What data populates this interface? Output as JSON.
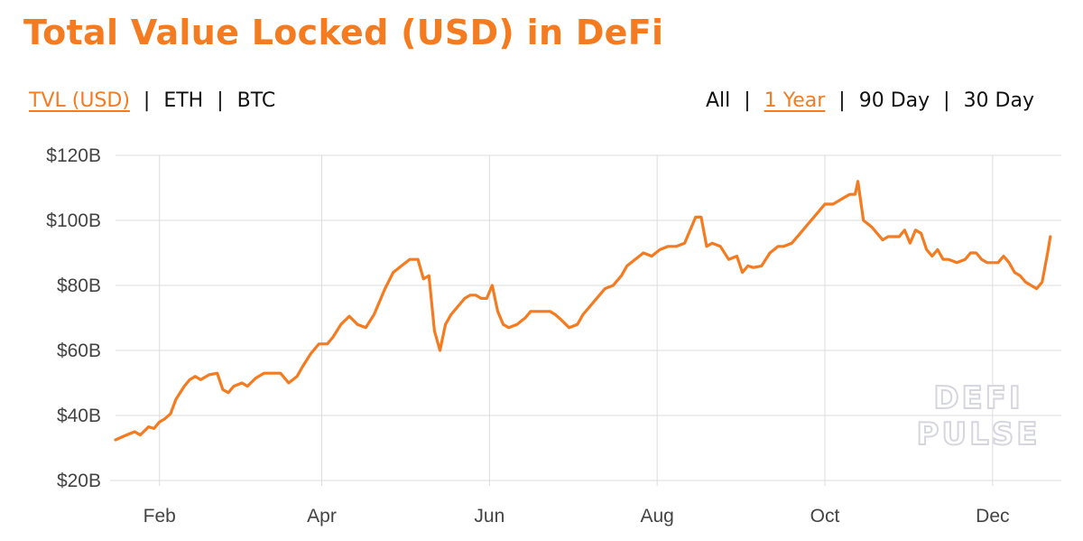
{
  "title": "Total Value Locked (USD) in DeFi",
  "metric_toggle": [
    {
      "label": "TVL (USD)",
      "active": true
    },
    {
      "label": "ETH",
      "active": false
    },
    {
      "label": "BTC",
      "active": false
    }
  ],
  "range_toggle": [
    {
      "label": "All",
      "active": false
    },
    {
      "label": "1 Year",
      "active": true
    },
    {
      "label": "90 Day",
      "active": false
    },
    {
      "label": "30 Day",
      "active": false
    }
  ],
  "separator": "|",
  "watermark": {
    "line1": "DEFI",
    "line2": "PULSE"
  },
  "colors": {
    "accent": "#f47b20",
    "grid": "#dcdcdc",
    "axis_text": "#444444"
  },
  "chart_data": {
    "type": "line",
    "title": "Total Value Locked (USD) in DeFi",
    "xlabel": "",
    "ylabel": "",
    "y_unit": "USD billions",
    "ylim": [
      20,
      120
    ],
    "xlim": [
      0,
      344
    ],
    "yticks": [
      20,
      40,
      60,
      80,
      100,
      120
    ],
    "ytick_labels": [
      "$20B",
      "$40B",
      "$60B",
      "$80B",
      "$100B",
      "$120B"
    ],
    "xticks": [
      {
        "label": "Feb",
        "x": 16
      },
      {
        "label": "Apr",
        "x": 75
      },
      {
        "label": "Jun",
        "x": 136
      },
      {
        "label": "Aug",
        "x": 197
      },
      {
        "label": "Oct",
        "x": 258
      },
      {
        "label": "Dec",
        "x": 319
      }
    ],
    "grid": true,
    "legend": "none",
    "series": [
      {
        "points": [
          [
            0,
            32.5
          ],
          [
            4,
            34
          ],
          [
            7,
            35
          ],
          [
            9,
            34
          ],
          [
            12,
            36.5
          ],
          [
            14,
            36
          ],
          [
            16,
            38
          ],
          [
            18,
            39
          ],
          [
            20,
            40.5
          ],
          [
            22,
            45
          ],
          [
            25,
            49
          ],
          [
            27,
            51
          ],
          [
            29,
            52
          ],
          [
            31,
            51
          ],
          [
            34,
            52.5
          ],
          [
            37,
            53
          ],
          [
            39,
            48
          ],
          [
            41,
            47
          ],
          [
            43,
            49
          ],
          [
            46,
            50
          ],
          [
            48,
            49
          ],
          [
            51,
            51.5
          ],
          [
            54,
            53
          ],
          [
            57,
            53
          ],
          [
            60,
            53
          ],
          [
            63,
            50
          ],
          [
            66,
            52
          ],
          [
            68,
            55
          ],
          [
            71,
            59
          ],
          [
            74,
            62
          ],
          [
            77,
            62
          ],
          [
            79,
            64
          ],
          [
            82,
            68
          ],
          [
            85,
            70.5
          ],
          [
            88,
            68
          ],
          [
            91,
            67
          ],
          [
            94,
            71
          ],
          [
            96,
            75
          ],
          [
            98,
            79
          ],
          [
            101,
            84
          ],
          [
            104,
            86
          ],
          [
            107,
            88
          ],
          [
            110,
            88
          ],
          [
            112,
            82
          ],
          [
            114,
            83
          ],
          [
            116,
            66
          ],
          [
            118,
            60
          ],
          [
            120,
            68
          ],
          [
            122,
            71
          ],
          [
            125,
            74
          ],
          [
            127,
            76
          ],
          [
            129,
            77
          ],
          [
            131,
            77
          ],
          [
            133,
            76
          ],
          [
            135,
            76
          ],
          [
            137,
            80
          ],
          [
            139,
            72
          ],
          [
            141,
            68
          ],
          [
            143,
            67
          ],
          [
            146,
            68
          ],
          [
            149,
            70
          ],
          [
            151,
            72
          ],
          [
            153,
            72
          ],
          [
            156,
            72
          ],
          [
            158,
            72
          ],
          [
            160,
            71
          ],
          [
            162,
            69.5
          ],
          [
            165,
            67
          ],
          [
            168,
            68
          ],
          [
            170,
            71
          ],
          [
            173,
            74
          ],
          [
            176,
            77
          ],
          [
            178,
            79
          ],
          [
            181,
            80
          ],
          [
            184,
            83
          ],
          [
            186,
            86
          ],
          [
            189,
            88
          ],
          [
            192,
            90
          ],
          [
            195,
            89
          ],
          [
            198,
            91
          ],
          [
            201,
            92
          ],
          [
            204,
            92
          ],
          [
            207,
            93
          ],
          [
            209,
            97
          ],
          [
            211,
            101
          ],
          [
            213,
            101
          ],
          [
            215,
            92
          ],
          [
            217,
            93
          ],
          [
            220,
            92
          ],
          [
            223,
            88
          ],
          [
            226,
            89
          ],
          [
            228,
            84
          ],
          [
            230,
            86
          ],
          [
            232,
            85.5
          ],
          [
            235,
            86
          ],
          [
            238,
            90
          ],
          [
            241,
            92
          ],
          [
            243,
            92
          ],
          [
            246,
            93
          ],
          [
            249,
            96
          ],
          [
            252,
            99
          ],
          [
            255,
            102
          ],
          [
            258,
            105
          ],
          [
            261,
            105
          ],
          [
            263,
            106
          ],
          [
            265,
            107
          ],
          [
            267,
            108
          ],
          [
            269,
            108
          ],
          [
            270,
            112
          ],
          [
            272,
            100
          ],
          [
            275,
            98
          ],
          [
            277,
            96
          ],
          [
            279,
            94
          ],
          [
            281,
            95
          ],
          [
            283,
            95
          ],
          [
            285,
            95
          ],
          [
            287,
            97
          ],
          [
            289,
            93
          ],
          [
            291,
            97
          ],
          [
            293,
            96
          ],
          [
            295,
            91
          ],
          [
            297,
            89
          ],
          [
            299,
            91
          ],
          [
            301,
            88
          ],
          [
            303,
            88
          ],
          [
            306,
            87
          ],
          [
            309,
            88
          ],
          [
            311,
            90
          ],
          [
            313,
            90
          ],
          [
            315,
            88
          ],
          [
            317,
            87
          ],
          [
            319,
            87
          ],
          [
            321,
            87
          ],
          [
            323,
            89
          ],
          [
            325,
            87
          ],
          [
            327,
            84
          ],
          [
            329,
            83
          ],
          [
            331,
            81
          ],
          [
            333,
            80
          ],
          [
            335,
            79
          ],
          [
            337,
            81
          ],
          [
            339,
            90
          ],
          [
            340,
            95
          ]
        ]
      }
    ]
  }
}
